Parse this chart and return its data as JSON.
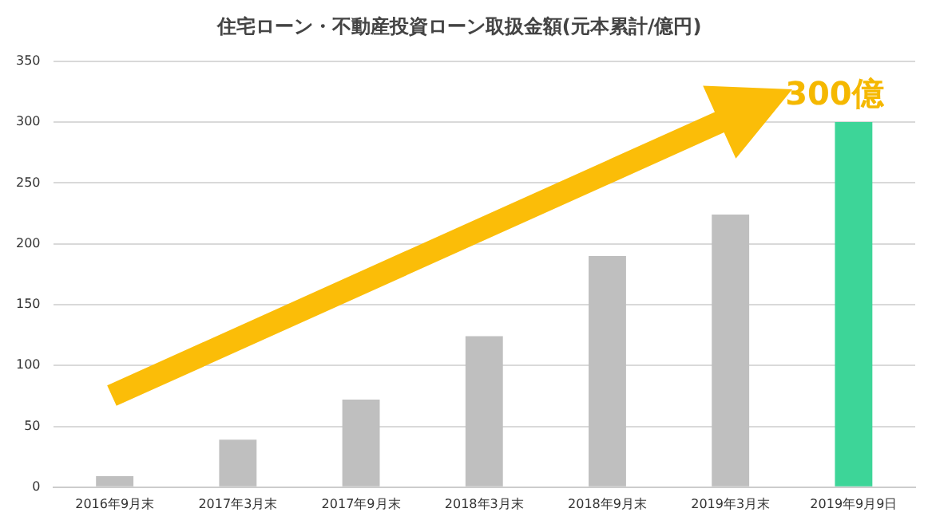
{
  "chart_data": {
    "type": "bar",
    "title": "住宅ローン・不動産投資ローン取扱金額(元本累計/億円)",
    "categories": [
      "2016年9月末",
      "2017年3月末",
      "2017年9月末",
      "2018年3月末",
      "2018年9月末",
      "2019年3月末",
      "2019年9月9日"
    ],
    "values": [
      9,
      39,
      72,
      124,
      190,
      224,
      300
    ],
    "colors": [
      "#bfbfbf",
      "#bfbfbf",
      "#bfbfbf",
      "#bfbfbf",
      "#bfbfbf",
      "#bfbfbf",
      "#3dd598"
    ],
    "ylim": [
      0,
      350
    ],
    "yticks": [
      0,
      50,
      100,
      150,
      200,
      250,
      300,
      350
    ],
    "grid": "y",
    "legend": false,
    "annotations": [
      {
        "text": "300億",
        "x": "2019年9月9日",
        "y": 300
      }
    ]
  }
}
